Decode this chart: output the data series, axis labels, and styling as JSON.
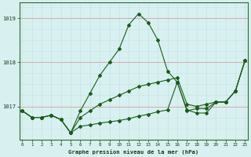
{
  "hours": [
    0,
    1,
    2,
    3,
    4,
    5,
    6,
    7,
    8,
    9,
    10,
    11,
    12,
    13,
    14,
    15,
    16,
    17,
    18,
    19,
    20,
    21,
    22,
    23
  ],
  "line1": [
    1016.9,
    1016.75,
    1016.75,
    1016.8,
    1016.7,
    1016.4,
    1016.9,
    1017.3,
    1017.7,
    1018.0,
    1018.3,
    1018.85,
    1019.1,
    1018.9,
    1018.5,
    1017.8,
    1017.55,
    1016.9,
    1016.95,
    1016.95,
    1017.1,
    1017.1,
    1017.35,
    1018.05
  ],
  "line2": [
    1016.9,
    1016.75,
    1016.75,
    1016.8,
    1016.7,
    1016.4,
    1016.75,
    1016.9,
    1017.05,
    1017.15,
    1017.25,
    1017.35,
    1017.45,
    1017.5,
    1017.55,
    1017.6,
    1017.65,
    1017.05,
    1017.0,
    1017.05,
    1017.1,
    1017.1,
    1017.35,
    1018.05
  ],
  "line3": [
    1016.9,
    1016.75,
    1016.75,
    1016.8,
    1016.7,
    1016.4,
    1016.55,
    1016.58,
    1016.62,
    1016.65,
    1016.68,
    1016.72,
    1016.78,
    1016.82,
    1016.88,
    1016.92,
    1017.55,
    1016.92,
    1016.85,
    1016.85,
    1017.1,
    1017.1,
    1017.35,
    1018.05
  ],
  "line_color": "#1a5c1a",
  "bg_color": "#d8f0f0",
  "grid_color_v": "#c5e3e3",
  "grid_color_h": "#c5e3e3",
  "hline_color": "#d4a0a0",
  "title": "Graphe pression niveau de la mer (hPa)",
  "yticks": [
    1017,
    1018,
    1019
  ],
  "ylim": [
    1016.25,
    1019.35
  ],
  "xlim": [
    -0.3,
    23.3
  ]
}
